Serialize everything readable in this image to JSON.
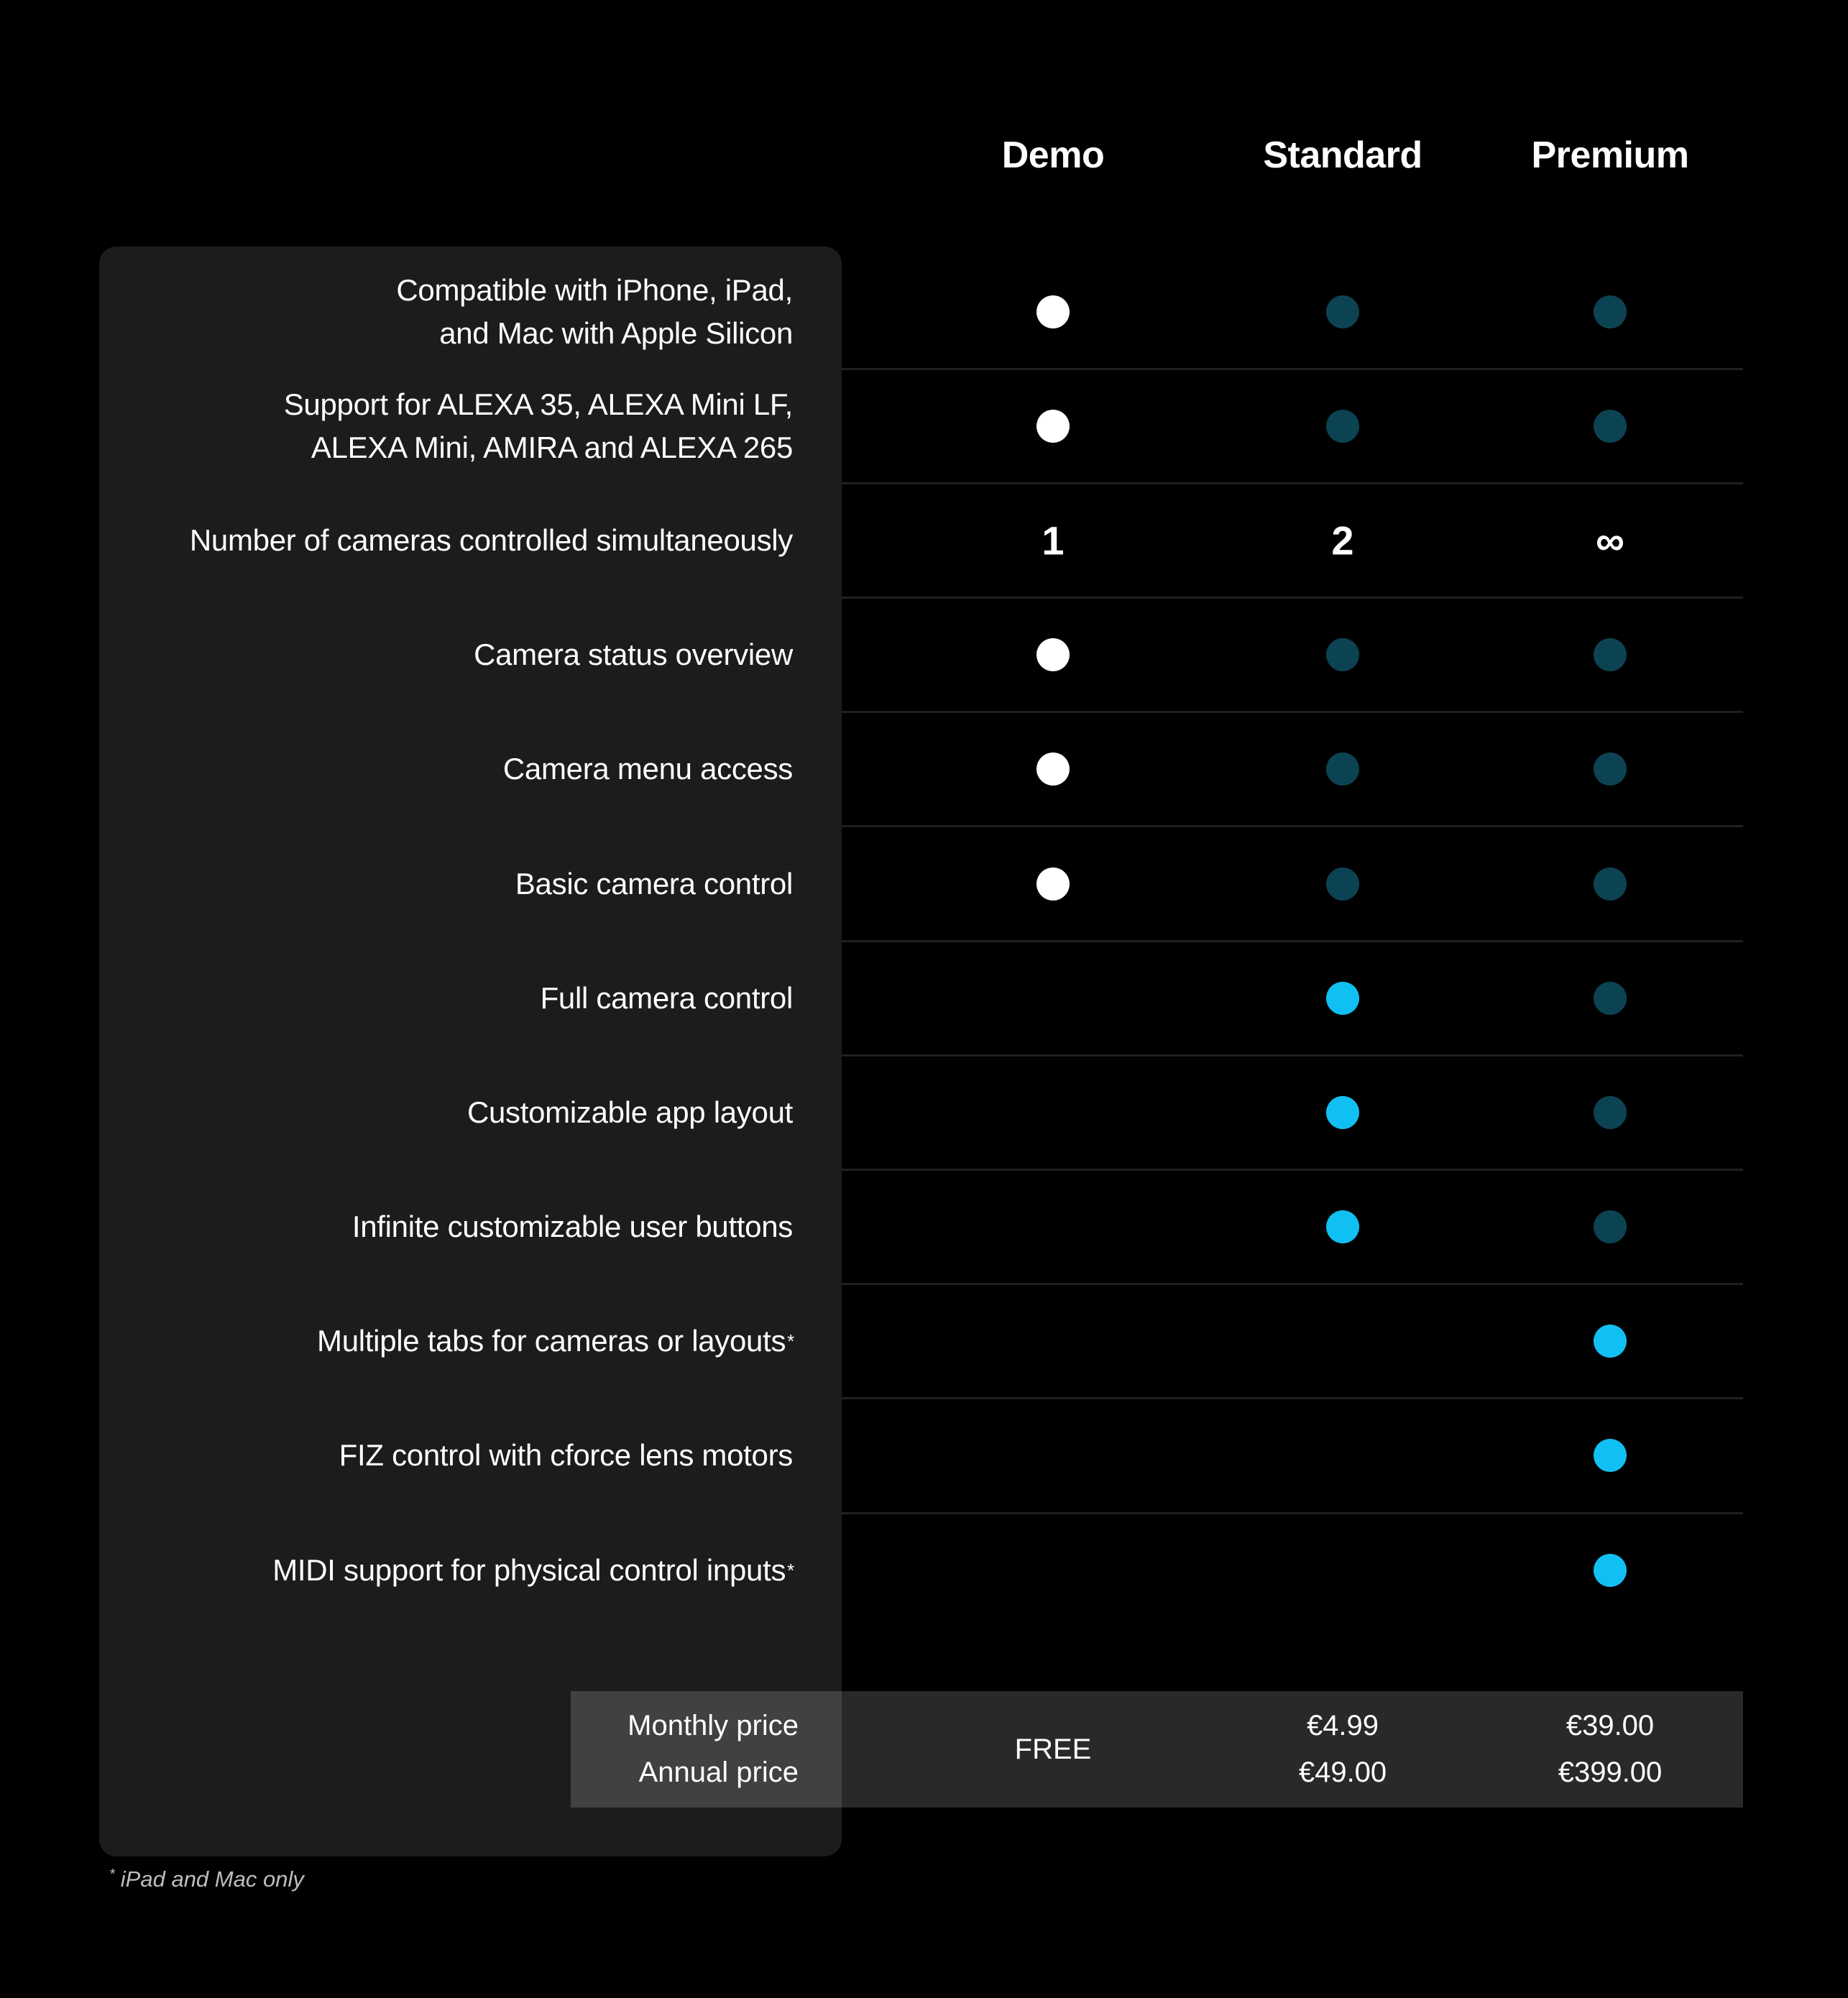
{
  "columns": [
    {
      "label": "Demo"
    },
    {
      "label": "Standard"
    },
    {
      "label": "Premium"
    }
  ],
  "rows": [
    {
      "label": "Compatible with iPhone, iPad,\nand Mac with Apple Silicon",
      "demo": "dot-white",
      "standard": "dot-teal",
      "premium": "dot-teal"
    },
    {
      "label": "Support for ALEXA 35, ALEXA Mini LF,\nALEXA Mini, AMIRA and ALEXA 265",
      "demo": "dot-white",
      "standard": "dot-teal",
      "premium": "dot-teal"
    },
    {
      "label": "Number of cameras controlled simultaneously",
      "demo": "1",
      "standard": "2",
      "premium": "∞"
    },
    {
      "label": "Camera status overview",
      "demo": "dot-white",
      "standard": "dot-teal",
      "premium": "dot-teal"
    },
    {
      "label": "Camera menu access",
      "demo": "dot-white",
      "standard": "dot-teal",
      "premium": "dot-teal"
    },
    {
      "label": "Basic camera control",
      "demo": "dot-white",
      "standard": "dot-teal",
      "premium": "dot-teal"
    },
    {
      "label": "Full camera control",
      "demo": "",
      "standard": "dot-cyan",
      "premium": "dot-teal"
    },
    {
      "label": "Customizable app layout",
      "demo": "",
      "standard": "dot-cyan",
      "premium": "dot-teal"
    },
    {
      "label": "Infinite customizable user buttons",
      "demo": "",
      "standard": "dot-cyan",
      "premium": "dot-teal"
    },
    {
      "label": "Multiple tabs for cameras or layouts",
      "sup": "*",
      "demo": "",
      "standard": "",
      "premium": "dot-cyan"
    },
    {
      "label": "FIZ control with cforce lens motors",
      "demo": "",
      "standard": "",
      "premium": "dot-cyan"
    },
    {
      "label": "MIDI support for physical control inputs",
      "sup": "*",
      "demo": "",
      "standard": "",
      "premium": "dot-cyan"
    }
  ],
  "price": {
    "monthly_label": "Monthly price",
    "annual_label": "Annual price",
    "demo": {
      "combined": "FREE"
    },
    "standard": {
      "monthly": "€4.99",
      "annual": "€49.00"
    },
    "premium": {
      "monthly": "€39.00",
      "annual": "€399.00"
    }
  },
  "footnote": {
    "sup": "*",
    "text": "iPad and Mac only"
  },
  "colors": {
    "background": "#000000",
    "panel": "#1c1c1c",
    "separator": "#202020",
    "band": "#292929",
    "band_label_cell": "#414141",
    "dot_white": "#ffffff",
    "dot_teal": "#0c4352",
    "dot_cyan": "#11c0f2"
  }
}
